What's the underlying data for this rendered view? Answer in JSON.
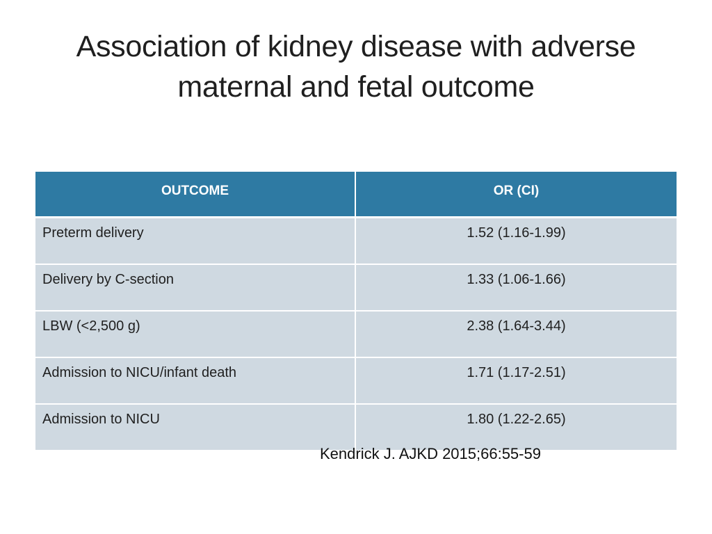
{
  "slide": {
    "title_line1": "Association of kidney disease with adverse",
    "title_line2": "maternal and fetal outcome"
  },
  "table": {
    "headers": [
      "OUTCOME",
      "OR (CI)"
    ],
    "rows": [
      {
        "outcome": "Preterm delivery",
        "or_ci": "1.52 (1.16-1.99)"
      },
      {
        "outcome": "Delivery by C-section",
        "or_ci": "1.33 (1.06-1.66)"
      },
      {
        "outcome": "LBW (<2,500 g)",
        "or_ci": "2.38 (1.64-3.44)"
      },
      {
        "outcome": "Admission to NICU/infant death",
        "or_ci": "1.71 (1.17-2.51)"
      },
      {
        "outcome": "Admission to NICU",
        "or_ci": "1.80 (1.22-2.65)"
      }
    ]
  },
  "citation": "Kendrick J. AJKD 2015;66:55-59",
  "colors": {
    "header_bg": "#2e7aa3",
    "row_bg": "#cfd9e1",
    "header_text": "#ffffff"
  }
}
